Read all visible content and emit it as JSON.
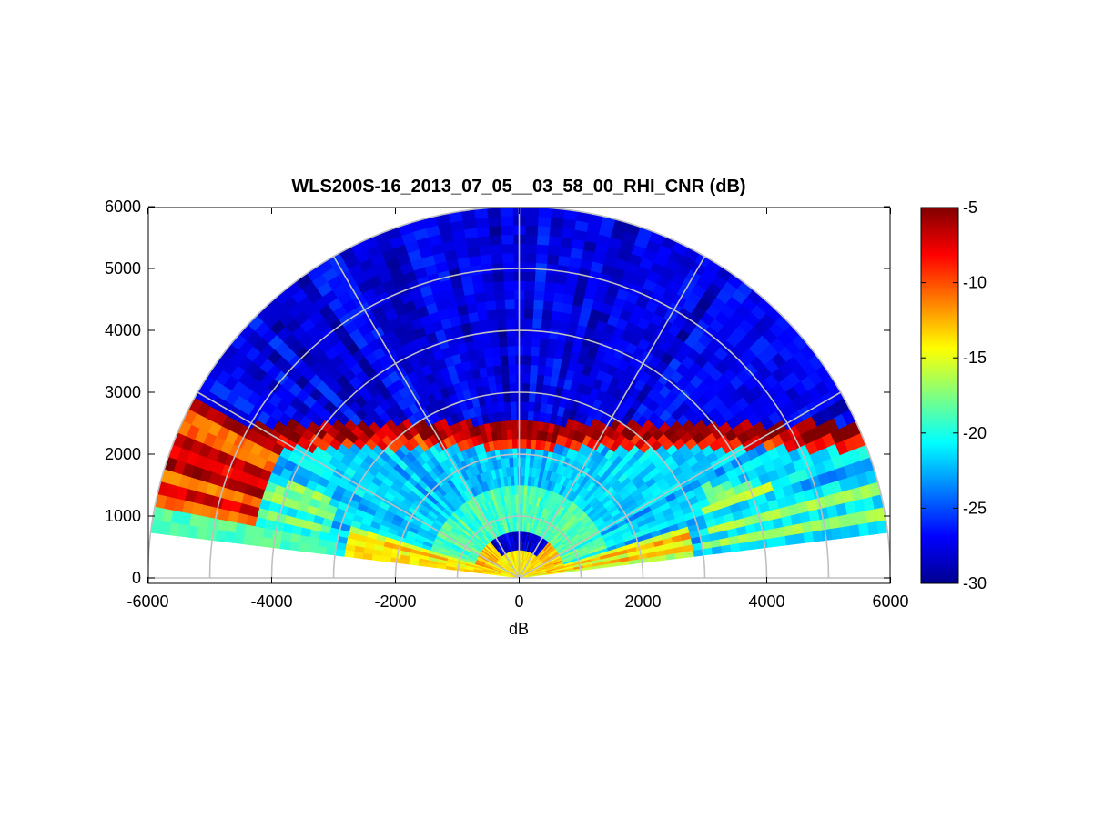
{
  "chart_data": {
    "type": "heatmap",
    "subtype": "polar RHI (range-height indicator) scan",
    "title": "WLS200S-16_2013_07_05__03_58_00_RHI_CNR (dB)",
    "xlabel": "dB",
    "ylabel": "",
    "xlim": [
      -6000,
      6000
    ],
    "ylim": [
      0,
      6000
    ],
    "x_ticks": [
      -6000,
      -4000,
      -2000,
      0,
      2000,
      4000,
      6000
    ],
    "y_ticks": [
      0,
      1000,
      2000,
      3000,
      4000,
      5000,
      6000
    ],
    "grid": "polar rings every 1000 and radial spokes every 30 degrees",
    "rings": [
      1000,
      2000,
      3000,
      4000,
      5000,
      6000
    ],
    "spokes_deg": [
      30,
      60,
      90,
      120,
      150
    ],
    "elevation_range_deg": [
      7,
      173
    ],
    "max_range": 6000,
    "colorbar": {
      "colormap": "jet",
      "range": [
        -30,
        -5
      ],
      "ticks": [
        -5,
        -10,
        -15,
        -20,
        -25,
        -30
      ]
    },
    "features": [
      {
        "description": "near-range (<1000) high CNR band",
        "cnr_dB": -13
      },
      {
        "description": "weak band near range 500 at high elevation",
        "cnr_dB": -28
      },
      {
        "description": "aerosol layer 700-1500 range",
        "cnr_dB": -19
      },
      {
        "description": "boundary layer top, strong return near altitude 2200-2500",
        "cnr_dB": -6
      },
      {
        "description": "free troposphere above 2500 altitude",
        "cnr_dB": -27
      },
      {
        "description": "low-elevation rays beyond 3000 range",
        "cnr_dB": -18
      }
    ]
  }
}
